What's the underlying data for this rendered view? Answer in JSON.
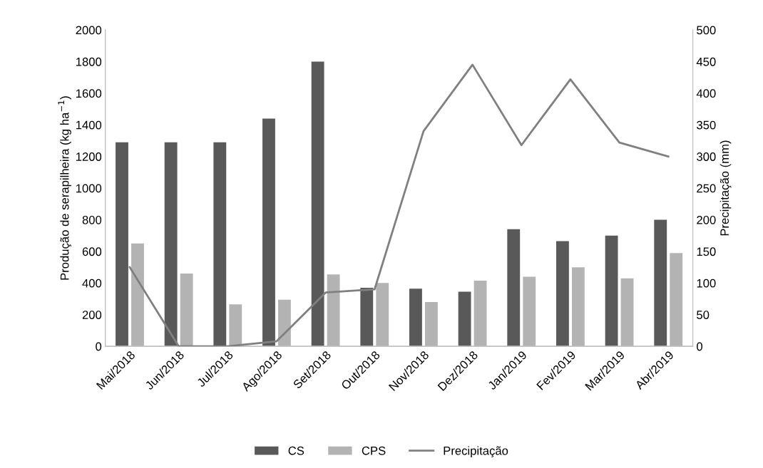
{
  "chart_data": {
    "type": "bar",
    "ylabel": "Produção de serapilheira (kg ha$^{−1}$)",
    "y2label": "Precipitação (mm)",
    "categories": [
      "Mai/2018",
      "Jun/2018",
      "Jul/2018",
      "Ago/2018",
      "Set/2018",
      "Out/2018",
      "Nov/2018",
      "Dez/2018",
      "Jan/2019",
      "Fev/2019",
      "Mar/2019",
      "Abr/2019"
    ],
    "series": [
      {
        "name": "CS",
        "color": "#595959",
        "values": [
          1290,
          1290,
          1290,
          1440,
          1800,
          370,
          365,
          345,
          740,
          665,
          700,
          800
        ]
      },
      {
        "name": "CPS",
        "color": "#b3b3b3",
        "values": [
          650,
          460,
          265,
          295,
          455,
          400,
          280,
          415,
          440,
          500,
          430,
          590
        ]
      },
      {
        "name": "Precipitação",
        "type": "line",
        "axis": "y2",
        "color": "#808080",
        "values": [
          125,
          0,
          0,
          8,
          85,
          90,
          340,
          445,
          318,
          422,
          322,
          300
        ]
      }
    ],
    "ylim": [
      0,
      2000
    ],
    "yticks": [
      0,
      200,
      400,
      600,
      800,
      1000,
      1200,
      1400,
      1600,
      1800,
      2000
    ],
    "y2lim": [
      0,
      500
    ],
    "y2ticks": [
      0,
      50,
      100,
      150,
      200,
      250,
      300,
      350,
      400,
      450,
      500
    ],
    "grid": false,
    "legend": "bottom",
    "marker": "none",
    "line_style": "solid"
  }
}
